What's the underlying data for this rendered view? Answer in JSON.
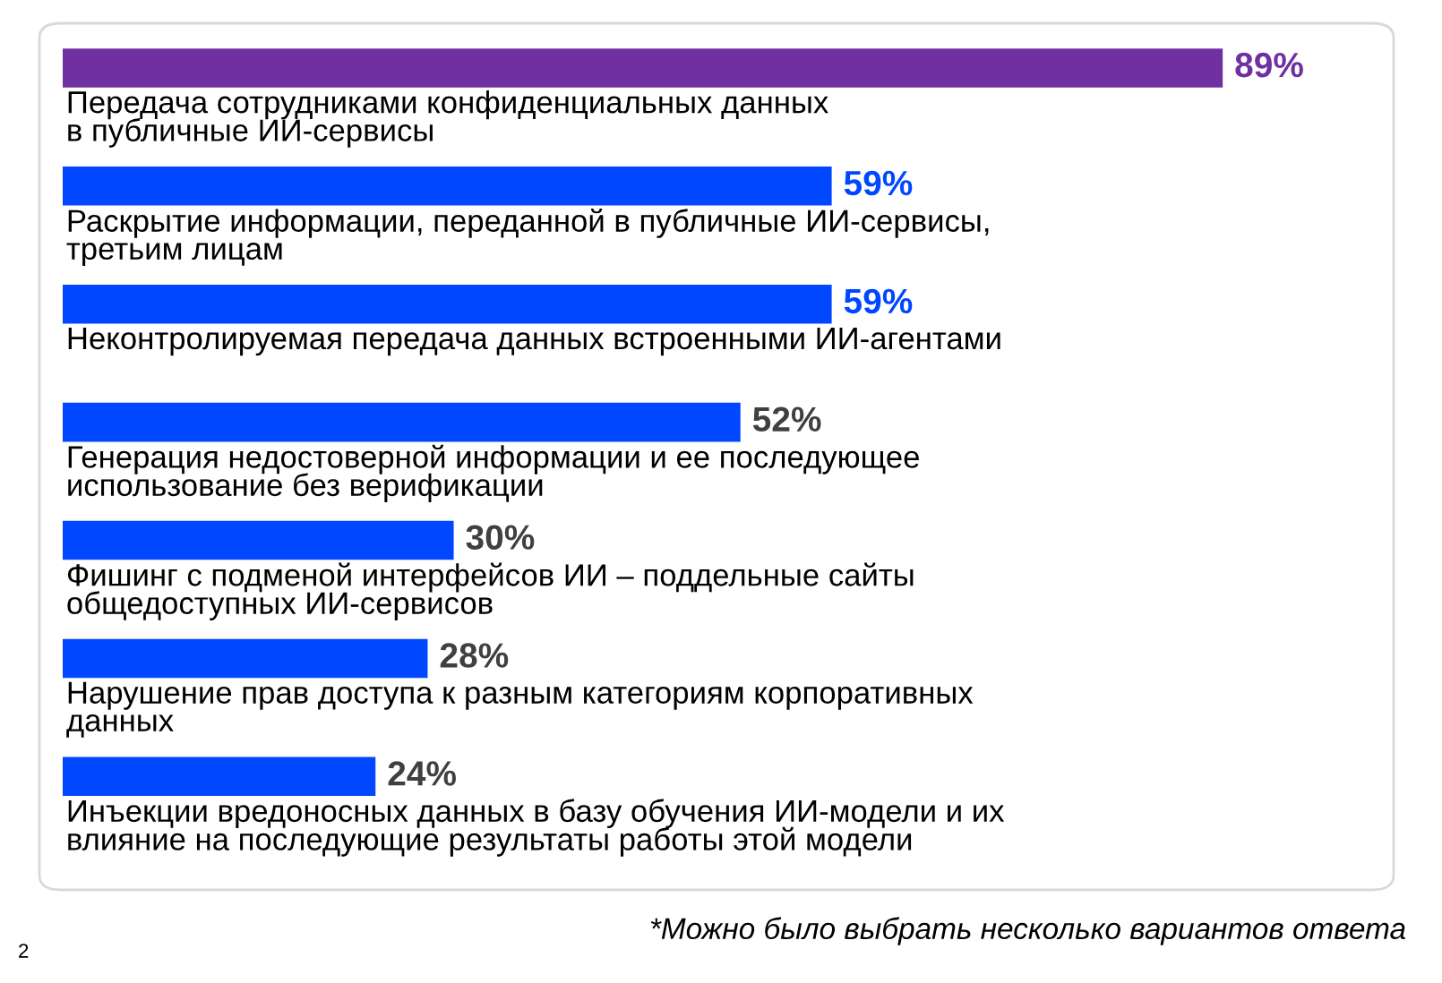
{
  "chart_data": {
    "type": "bar",
    "orientation": "horizontal",
    "categories": [
      "Передача сотрудниками конфиденциальных данных\nв публичные ИИ-сервисы",
      "Раскрытие информации, переданной в публичные ИИ-сервисы,\nтретьим лицам",
      "Неконтролируемая передача данных встроенными ИИ-агентами",
      "Генерация недостоверной информации и ее последующее\nиспользование без верификации",
      "Фишинг с подменой интерфейсов ИИ – поддельные сайты\nобщедоступных ИИ-сервисов",
      "Нарушение прав доступа к разным категориям корпоративных\nданных",
      "Инъекции вредоносных данных в базу обучения ИИ-модели и их\nвлияние на последующие результаты работы этой модели"
    ],
    "values": [
      89,
      59,
      59,
      52,
      30,
      28,
      24
    ],
    "value_labels": [
      "89%",
      "59%",
      "59%",
      "52%",
      "30%",
      "28%",
      "24%"
    ],
    "colors": [
      "#7030a0",
      "#0047ff",
      "#0047ff",
      "#0047ff",
      "#0047ff",
      "#0047ff",
      "#0047ff"
    ],
    "annotations": [
      "*Можно было выбрать несколько вариантов ответа",
      "2"
    ]
  }
}
